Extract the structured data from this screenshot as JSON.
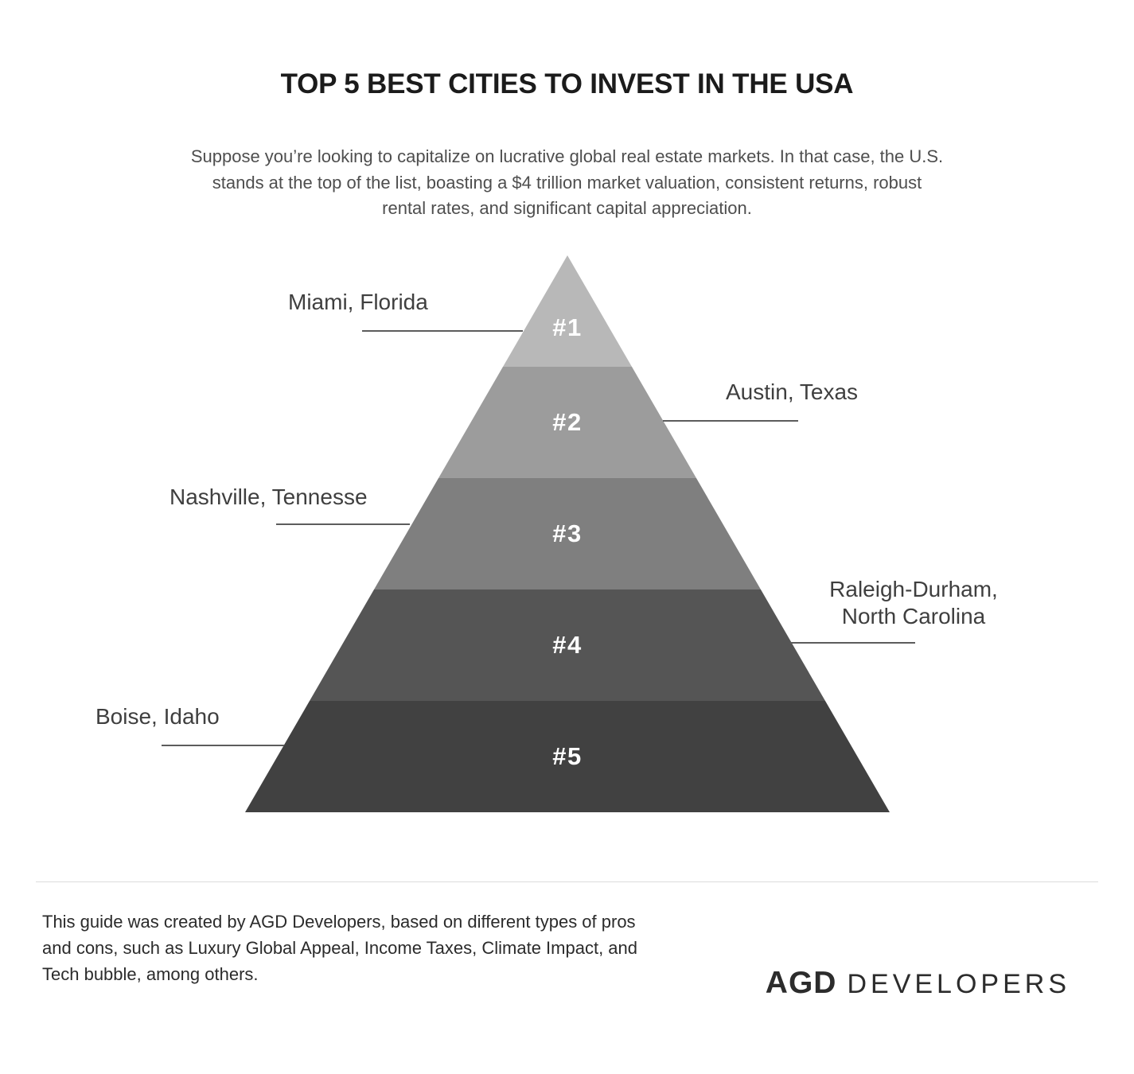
{
  "header": {
    "title": "TOP 5 BEST CITIES TO INVEST IN THE USA",
    "subtitle": "Suppose you’re looking to capitalize on lucrative global real estate markets. In that case, the U.S. stands at the top of the list, boasting a $4 trillion market valuation, consistent returns, robust rental rates, and significant capital appreciation."
  },
  "chart_data": {
    "type": "pyramid",
    "title": "TOP 5 BEST CITIES TO INVEST IN THE USA",
    "order": "rank 1 at apex, rank 5 at base",
    "rank_label_color": "#ffffff",
    "leader_line_color": "#5c5c5c",
    "levels": [
      {
        "rank": "#1",
        "city": "Miami, Florida",
        "label_side": "left",
        "color": "#b8b8b8"
      },
      {
        "rank": "#2",
        "city": "Austin, Texas",
        "label_side": "right",
        "color": "#9c9c9c"
      },
      {
        "rank": "#3",
        "city": "Nashville, Tennesse",
        "label_side": "left",
        "color": "#7f7f7f"
      },
      {
        "rank": "#4",
        "city": "Raleigh-Durham, North Carolina",
        "label_side": "right",
        "color": "#555555"
      },
      {
        "rank": "#5",
        "city": "Boise, Idaho",
        "label_side": "left",
        "color": "#414141"
      }
    ]
  },
  "footer": {
    "note": "This guide was created by AGD Developers, based on different types of pros and cons, such as Luxury Global Appeal, Income Taxes, Climate Impact, and Tech bubble, among others.",
    "logo": {
      "mark": "AGD",
      "word": "DEVELOPERS"
    }
  }
}
